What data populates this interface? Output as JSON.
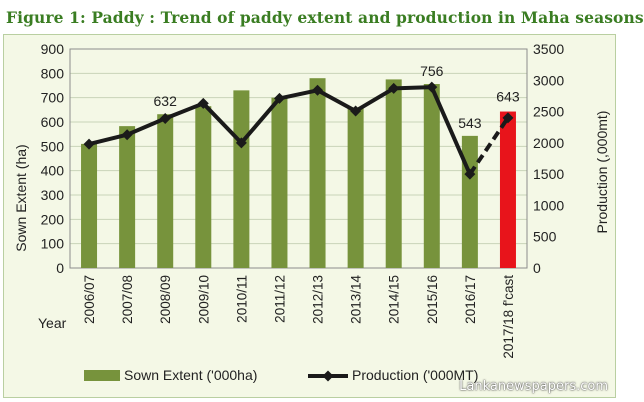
{
  "figure_title": "Figure 1: Paddy : Trend of paddy extent and production in Maha seasons",
  "watermark": "Lankanewspapers.com",
  "colors": {
    "bar": "#77933c",
    "forecast_bar": "#e8141b",
    "line": "#1a1a1a",
    "title": "#3a7d22",
    "panel": "#f4f8e6"
  },
  "chart_data": {
    "type": "bar",
    "categories": [
      "2006/07",
      "2007/08",
      "2008/09",
      "2009/10",
      "2010/11",
      "2011/12",
      "2012/13",
      "2013/14",
      "2014/15",
      "2015/16",
      "2016/17",
      "2017/18 f'cast"
    ],
    "series": [
      {
        "name": "Sown Extent ('000ha)",
        "type": "bar",
        "axis": "left",
        "values": [
          510,
          583,
          632,
          665,
          730,
          700,
          780,
          660,
          775,
          756,
          543,
          643
        ]
      },
      {
        "name": "Production ('000MT)",
        "type": "line",
        "axis": "right",
        "values": [
          1980,
          2130,
          2390,
          2630,
          2000,
          2710,
          2840,
          2510,
          2870,
          2890,
          1500,
          2400
        ],
        "forecast_from_index": 10
      }
    ],
    "data_labels": [
      {
        "category": "2008/09",
        "text": "632"
      },
      {
        "category": "2015/16",
        "text": "756"
      },
      {
        "category": "2016/17",
        "text": "543"
      },
      {
        "category": "2017/18 f'cast",
        "text": "643"
      }
    ],
    "forecast_index": 11,
    "xlabel": "Year",
    "ylabel": "Sown Extent (ha)",
    "y2label": "Production (,000mt)",
    "ylim": [
      0,
      900
    ],
    "y2lim": [
      0,
      3500
    ],
    "yticks": [
      "0",
      "100",
      "200",
      "300",
      "400",
      "500",
      "600",
      "700",
      "800",
      "900"
    ],
    "y2ticks": [
      "0",
      "500",
      "1000",
      "1500",
      "2000",
      "2500",
      "3000",
      "3500"
    ],
    "grid": true,
    "legend_position": "bottom"
  }
}
